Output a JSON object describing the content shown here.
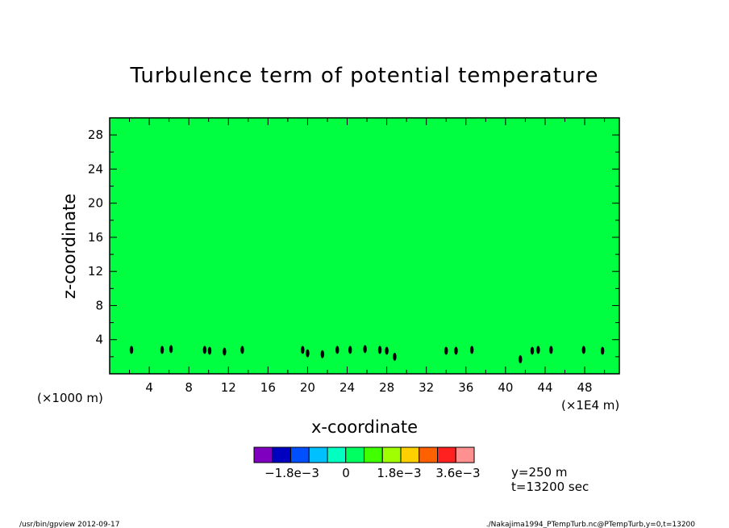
{
  "chart_data": {
    "type": "heatmap",
    "title": "Turbulence term of potential temperature",
    "xlabel": "x-coordinate",
    "ylabel": "z-coordinate",
    "x_unit_left": "(×1000 m)",
    "x_unit_right": "(×1E4 m)",
    "xlim": [
      0,
      51.5
    ],
    "ylim": [
      0,
      30
    ],
    "x_ticks": [
      "4",
      "8",
      "12",
      "16",
      "20",
      "24",
      "28",
      "32",
      "36",
      "40",
      "44",
      "48"
    ],
    "y_ticks": [
      "4",
      "8",
      "12",
      "16",
      "20",
      "24",
      "28"
    ],
    "field_color": "#00ff40",
    "features": [
      {
        "x": 2.2,
        "z": 2.8
      },
      {
        "x": 5.3,
        "z": 2.8
      },
      {
        "x": 6.2,
        "z": 2.9
      },
      {
        "x": 9.6,
        "z": 2.8
      },
      {
        "x": 10.1,
        "z": 2.7
      },
      {
        "x": 11.6,
        "z": 2.6
      },
      {
        "x": 13.4,
        "z": 2.8
      },
      {
        "x": 19.5,
        "z": 2.8
      },
      {
        "x": 20.0,
        "z": 2.4
      },
      {
        "x": 21.5,
        "z": 2.3
      },
      {
        "x": 23.0,
        "z": 2.8
      },
      {
        "x": 24.3,
        "z": 2.8
      },
      {
        "x": 25.8,
        "z": 2.9
      },
      {
        "x": 27.3,
        "z": 2.8
      },
      {
        "x": 28.0,
        "z": 2.7
      },
      {
        "x": 28.8,
        "z": 2.0
      },
      {
        "x": 34.0,
        "z": 2.7
      },
      {
        "x": 35.0,
        "z": 2.7
      },
      {
        "x": 36.6,
        "z": 2.8
      },
      {
        "x": 41.5,
        "z": 1.7
      },
      {
        "x": 42.7,
        "z": 2.7
      },
      {
        "x": 43.3,
        "z": 2.8
      },
      {
        "x": 44.6,
        "z": 2.8
      },
      {
        "x": 47.9,
        "z": 2.8
      },
      {
        "x": 49.8,
        "z": 2.7
      }
    ],
    "colorbar": {
      "colors": [
        "#8000c0",
        "#0000c0",
        "#0050ff",
        "#00c0ff",
        "#00ffc0",
        "#00ff60",
        "#40ff00",
        "#a0ff00",
        "#ffd000",
        "#ff6000",
        "#ff2020",
        "#ff9090"
      ],
      "labels": [
        "−1.8e−3",
        "0",
        "1.8e−3",
        "3.6e−3"
      ]
    },
    "annotations": [
      "y=250 m",
      "t=13200 sec"
    ]
  },
  "footer": {
    "left": "/usr/bin/gpview   2012-09-17",
    "right": "./Nakajima1994_PTempTurb.nc@PTempTurb,y=0,t=13200"
  }
}
